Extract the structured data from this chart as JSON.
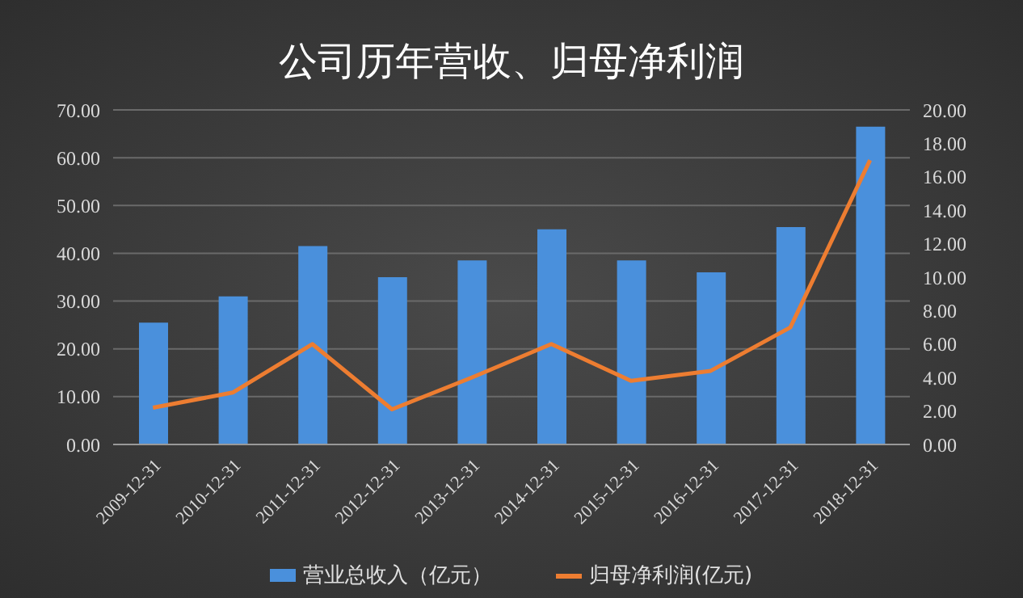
{
  "chart_data": {
    "type": "bar",
    "title": "公司历年营收、归母净利润",
    "categories": [
      "2009-12-31",
      "2010-12-31",
      "2011-12-31",
      "2012-12-31",
      "2013-12-31",
      "2014-12-31",
      "2015-12-31",
      "2016-12-31",
      "2017-12-31",
      "2018-12-31"
    ],
    "series": [
      {
        "name": "营业总收入（亿元）",
        "color": "#4a90dc",
        "values": [
          25.5,
          31,
          41.5,
          35,
          38.5,
          45,
          38.5,
          36,
          45.5,
          66.5
        ]
      },
      {
        "name": "归母净利润(亿元)",
        "type": "line",
        "axis": "y2",
        "color": "#ed7d31",
        "values": [
          2.2,
          3.1,
          6.0,
          2.1,
          4.0,
          6.0,
          3.8,
          4.4,
          7.0,
          17.0
        ]
      }
    ],
    "ylim": [
      0,
      70
    ],
    "yticks": [
      {
        "value": 0,
        "label": "0.00"
      },
      {
        "value": 10,
        "label": "10.00"
      },
      {
        "value": 20,
        "label": "20.00"
      },
      {
        "value": 30,
        "label": "30.00"
      },
      {
        "value": 40,
        "label": "40.00"
      },
      {
        "value": 50,
        "label": "50.00"
      },
      {
        "value": 60,
        "label": "60.00"
      },
      {
        "value": 70,
        "label": "70.00"
      }
    ],
    "y2lim": [
      0,
      20
    ],
    "y2ticks": [
      {
        "value": 0,
        "label": "0.00"
      },
      {
        "value": 2,
        "label": "2.00"
      },
      {
        "value": 4,
        "label": "4.00"
      },
      {
        "value": 6,
        "label": "6.00"
      },
      {
        "value": 8,
        "label": "8.00"
      },
      {
        "value": 10,
        "label": "10.00"
      },
      {
        "value": 12,
        "label": "12.00"
      },
      {
        "value": 14,
        "label": "14.00"
      },
      {
        "value": 16,
        "label": "16.00"
      },
      {
        "value": 18,
        "label": "18.00"
      },
      {
        "value": 20,
        "label": "20.00"
      }
    ],
    "grid": "y",
    "legend": "bottom",
    "marker": "none"
  }
}
